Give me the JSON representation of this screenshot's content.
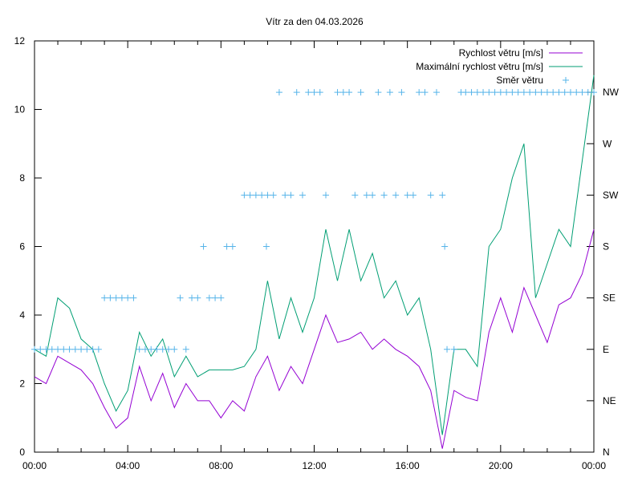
{
  "chart_data": {
    "type": "line",
    "title": "Vítr za den 04.03.2026",
    "xlabel": "",
    "ylabel": "",
    "xlim": [
      0,
      24
    ],
    "ylim": [
      0,
      12
    ],
    "grid": false,
    "legend_placement": "top-right",
    "x_tick_labels": [
      "00:00",
      "04:00",
      "08:00",
      "12:00",
      "16:00",
      "20:00",
      "00:00"
    ],
    "y_tick_labels": [
      "0",
      "2",
      "4",
      "6",
      "8",
      "10",
      "12"
    ],
    "y2_tick_labels": [
      "N",
      "NE",
      "E",
      "SE",
      "S",
      "SW",
      "W",
      "NW"
    ],
    "y2_values": [
      0,
      1.5,
      3,
      4.5,
      6,
      7.5,
      9,
      10.5
    ],
    "x_hours": [
      0,
      0.5,
      1,
      1.5,
      2,
      2.5,
      3,
      3.5,
      4,
      4.5,
      5,
      5.5,
      6,
      6.5,
      7,
      7.5,
      8,
      8.5,
      9,
      9.5,
      10,
      10.5,
      11,
      11.5,
      12,
      12.5,
      13,
      13.5,
      14,
      14.5,
      15,
      15.5,
      16,
      16.5,
      17,
      17.5,
      18,
      18.5,
      19,
      19.5,
      20,
      20.5,
      21,
      21.5,
      22,
      22.5,
      23,
      23.5,
      24
    ],
    "series": [
      {
        "name": "Rychlost větru [m/s]",
        "color": "#9400d3",
        "values": [
          2.2,
          2.0,
          2.8,
          2.6,
          2.4,
          2.0,
          1.3,
          0.7,
          1.0,
          2.5,
          1.5,
          2.3,
          1.3,
          2.0,
          1.5,
          1.5,
          1.0,
          1.5,
          1.2,
          2.2,
          2.8,
          1.8,
          2.5,
          2.0,
          3.0,
          4.0,
          3.2,
          3.3,
          3.5,
          3.0,
          3.3,
          3.0,
          2.8,
          2.5,
          1.8,
          0.1,
          1.8,
          1.6,
          1.5,
          3.5,
          4.5,
          3.5,
          4.8,
          4.0,
          3.2,
          4.3,
          4.5,
          5.2,
          6.5
        ]
      },
      {
        "name": "Maximální rychlost větru [m/s]",
        "color": "#009e73",
        "values": [
          3.0,
          2.8,
          4.5,
          4.2,
          3.3,
          3.0,
          2.0,
          1.2,
          1.8,
          3.5,
          2.8,
          3.3,
          2.2,
          2.8,
          2.2,
          2.4,
          2.4,
          2.4,
          2.5,
          3.0,
          5.0,
          3.3,
          4.5,
          3.5,
          4.5,
          6.5,
          5.0,
          6.5,
          5.0,
          5.8,
          4.5,
          5.0,
          4.0,
          4.5,
          3.0,
          0.5,
          3.0,
          3.0,
          2.5,
          6.0,
          6.5,
          8.0,
          9.0,
          4.5,
          5.5,
          6.5,
          6.0,
          8.5,
          11.0
        ]
      },
      {
        "name": "Směr větru",
        "color": "#56b4e9",
        "points": [
          [
            0,
            "E"
          ],
          [
            0.25,
            "E"
          ],
          [
            0.5,
            "E"
          ],
          [
            0.75,
            "E"
          ],
          [
            1,
            "E"
          ],
          [
            1.25,
            "E"
          ],
          [
            1.5,
            "E"
          ],
          [
            1.75,
            "E"
          ],
          [
            2,
            "E"
          ],
          [
            2.25,
            "E"
          ],
          [
            2.5,
            "E"
          ],
          [
            2.75,
            "E"
          ],
          [
            3,
            "SE"
          ],
          [
            3.25,
            "SE"
          ],
          [
            3.5,
            "SE"
          ],
          [
            3.75,
            "SE"
          ],
          [
            4,
            "SE"
          ],
          [
            4.25,
            "SE"
          ],
          [
            4.5,
            "E"
          ],
          [
            4.75,
            "E"
          ],
          [
            5,
            "E"
          ],
          [
            5.25,
            "E"
          ],
          [
            5.5,
            "E"
          ],
          [
            5.75,
            "E"
          ],
          [
            6,
            "E"
          ],
          [
            6.25,
            "SE"
          ],
          [
            6.5,
            "E"
          ],
          [
            6.75,
            "SE"
          ],
          [
            7,
            "SE"
          ],
          [
            7.25,
            "S"
          ],
          [
            7.5,
            "SE"
          ],
          [
            7.75,
            "SE"
          ],
          [
            8,
            "SE"
          ],
          [
            8.25,
            "S"
          ],
          [
            8.5,
            "S"
          ],
          [
            9,
            "SW"
          ],
          [
            9.25,
            "SW"
          ],
          [
            9.5,
            "SW"
          ],
          [
            9.75,
            "SW"
          ],
          [
            9.95,
            "S"
          ],
          [
            10,
            "SW"
          ],
          [
            10.25,
            "SW"
          ],
          [
            10.5,
            "NW"
          ],
          [
            10.75,
            "SW"
          ],
          [
            11,
            "SW"
          ],
          [
            11.25,
            "NW"
          ],
          [
            11.5,
            "SW"
          ],
          [
            11.75,
            "NW"
          ],
          [
            12,
            "NW"
          ],
          [
            12.25,
            "NW"
          ],
          [
            12.5,
            "SW"
          ],
          [
            13,
            "NW"
          ],
          [
            13.25,
            "NW"
          ],
          [
            13.5,
            "NW"
          ],
          [
            13.75,
            "SW"
          ],
          [
            14,
            "NW"
          ],
          [
            14.25,
            "SW"
          ],
          [
            14.5,
            "SW"
          ],
          [
            14.75,
            "NW"
          ],
          [
            15,
            "SW"
          ],
          [
            15.25,
            "NW"
          ],
          [
            15.5,
            "SW"
          ],
          [
            15.75,
            "NW"
          ],
          [
            16,
            "SW"
          ],
          [
            16.25,
            "SW"
          ],
          [
            16.5,
            "NW"
          ],
          [
            16.75,
            "NW"
          ],
          [
            17,
            "SW"
          ],
          [
            17.25,
            "NW"
          ],
          [
            17.5,
            "SW"
          ],
          [
            17.6,
            "S"
          ],
          [
            17.7,
            "E"
          ],
          [
            18,
            "E"
          ],
          [
            18.3,
            "NW"
          ],
          [
            18.5,
            "NW"
          ],
          [
            18.75,
            "NW"
          ],
          [
            19,
            "NW"
          ],
          [
            19.25,
            "NW"
          ],
          [
            19.5,
            "NW"
          ],
          [
            19.75,
            "NW"
          ],
          [
            20,
            "NW"
          ],
          [
            20.25,
            "NW"
          ],
          [
            20.5,
            "NW"
          ],
          [
            20.75,
            "NW"
          ],
          [
            21,
            "NW"
          ],
          [
            21.25,
            "NW"
          ],
          [
            21.5,
            "NW"
          ],
          [
            21.75,
            "NW"
          ],
          [
            22,
            "NW"
          ],
          [
            22.25,
            "NW"
          ],
          [
            22.5,
            "NW"
          ],
          [
            22.75,
            "NW"
          ],
          [
            23,
            "NW"
          ],
          [
            23.25,
            "NW"
          ],
          [
            23.5,
            "NW"
          ],
          [
            23.75,
            "NW"
          ],
          [
            24,
            "NW"
          ]
        ]
      }
    ]
  }
}
